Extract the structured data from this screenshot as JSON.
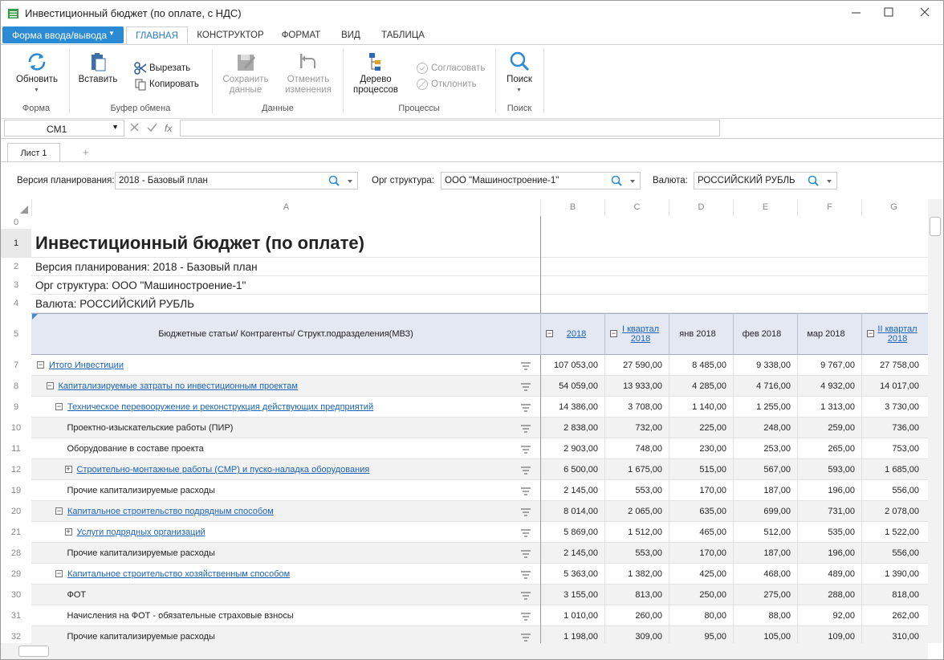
{
  "window": {
    "title": "Инвестиционный бюджет (по оплате, с НДС)"
  },
  "ribbon": {
    "form_button": "Форма ввода/вывода",
    "tabs": [
      "ГЛАВНАЯ",
      "КОНСТРУКТОР",
      "ФОРМАТ",
      "ВИД",
      "ТАБЛИЦА"
    ],
    "active_tab": 0,
    "groups": [
      {
        "label": "Форма",
        "buttons": [
          "Обновить"
        ]
      },
      {
        "label": "Буфер обмена",
        "buttons": [
          "Вставить",
          "Вырезать",
          "Копировать"
        ]
      },
      {
        "label": "Данные",
        "buttons": [
          "Сохранить данные",
          "Отменить изменения"
        ]
      },
      {
        "label": "Процессы",
        "buttons": [
          "Дерево процессов",
          "Согласовать",
          "Отклонить"
        ]
      },
      {
        "label": "Поиск",
        "buttons": [
          "Поиск"
        ]
      }
    ]
  },
  "formula_bar": {
    "cell_ref": "CM1"
  },
  "sheet_tabs": [
    "Лист 1"
  ],
  "filters": [
    {
      "label": "Версия планирования:",
      "value": "2018 - Базовый план"
    },
    {
      "label": "Орг структура:",
      "value": "ООО \"Машиностроение-1\""
    },
    {
      "label": "Валюта:",
      "value": "РОССИЙСКИЙ РУБЛЬ"
    }
  ],
  "sheet": {
    "columns": [
      "A",
      "B",
      "C",
      "D",
      "E",
      "F",
      "G"
    ],
    "title_rows": [
      {
        "num": 0,
        "text": null
      },
      {
        "num": 1,
        "text": "Инвестиционный бюджет (по оплате)"
      },
      {
        "num": 2,
        "text": "Версия планирования: 2018 - Базовый план"
      },
      {
        "num": 3,
        "text": "Орг структура: ООО \"Машиностроение-1\""
      },
      {
        "num": 4,
        "text": "Валюта: РОССИЙСКИЙ РУБЛЬ"
      }
    ],
    "header_row": {
      "num": 5,
      "label": "Бюджетные статьи/ Контрагенты/ Структ.подразделения(МВЗ)",
      "columns": [
        {
          "text": "2018",
          "toggle": "minus",
          "link": true
        },
        {
          "text": "I квартал 2018",
          "toggle": "minus",
          "link": true
        },
        {
          "text": "янв 2018",
          "toggle": null,
          "link": false
        },
        {
          "text": "фев 2018",
          "toggle": null,
          "link": false
        },
        {
          "text": "мар 2018",
          "toggle": null,
          "link": false
        },
        {
          "text": "II квартал 2018",
          "toggle": "minus",
          "link": true
        }
      ]
    },
    "rows": [
      {
        "num": 7,
        "label": "Итого Инвестиции",
        "level": 0,
        "toggle": "minus",
        "link": true,
        "values": [
          "107 053,00",
          "27 590,00",
          "8 485,00",
          "9 338,00",
          "9 767,00",
          "27 758,00"
        ]
      },
      {
        "num": 8,
        "label": "Капитализируемые затраты по инвестиционным проектам",
        "level": 1,
        "toggle": "minus",
        "link": true,
        "values": [
          "54 059,00",
          "13 933,00",
          "4 285,00",
          "4 716,00",
          "4 932,00",
          "14 017,00"
        ]
      },
      {
        "num": 9,
        "label": "Техническое перевооружение и реконструкция действующих предприятий",
        "level": 2,
        "toggle": "minus",
        "link": true,
        "values": [
          "14 386,00",
          "3 708,00",
          "1 140,00",
          "1 255,00",
          "1 313,00",
          "3 730,00"
        ]
      },
      {
        "num": 10,
        "label": "Проектно-изыскательские работы (ПИР)",
        "level": 3,
        "toggle": null,
        "link": false,
        "values": [
          "2 838,00",
          "732,00",
          "225,00",
          "248,00",
          "259,00",
          "736,00"
        ]
      },
      {
        "num": 11,
        "label": "Оборудование в составе проекта",
        "level": 3,
        "toggle": null,
        "link": false,
        "values": [
          "2 903,00",
          "748,00",
          "230,00",
          "253,00",
          "265,00",
          "753,00"
        ]
      },
      {
        "num": 12,
        "label": "Строительно-монтажные работы (СМР) и пуско-наладка оборудования",
        "level": 3,
        "toggle": "plus",
        "link": true,
        "values": [
          "6 500,00",
          "1 675,00",
          "515,00",
          "567,00",
          "593,00",
          "1 685,00"
        ]
      },
      {
        "num": 19,
        "label": "Прочие капитализируемые расходы",
        "level": 3,
        "toggle": null,
        "link": false,
        "values": [
          "2 145,00",
          "553,00",
          "170,00",
          "187,00",
          "196,00",
          "556,00"
        ]
      },
      {
        "num": 20,
        "label": "Капитальное строительство подрядным способом",
        "level": 2,
        "toggle": "minus",
        "link": true,
        "values": [
          "8 014,00",
          "2 065,00",
          "635,00",
          "699,00",
          "731,00",
          "2 078,00"
        ]
      },
      {
        "num": 21,
        "label": "Услуги подрядных организаций",
        "level": 3,
        "toggle": "plus",
        "link": true,
        "values": [
          "5 869,00",
          "1 512,00",
          "465,00",
          "512,00",
          "535,00",
          "1 522,00"
        ]
      },
      {
        "num": 28,
        "label": "Прочие капитализируемые расходы",
        "level": 3,
        "toggle": null,
        "link": false,
        "values": [
          "2 145,00",
          "553,00",
          "170,00",
          "187,00",
          "196,00",
          "556,00"
        ]
      },
      {
        "num": 29,
        "label": "Капитальное строительство хозяйственным способом",
        "level": 2,
        "toggle": "minus",
        "link": true,
        "values": [
          "5 363,00",
          "1 382,00",
          "425,00",
          "468,00",
          "489,00",
          "1 390,00"
        ]
      },
      {
        "num": 30,
        "label": "ФОТ",
        "level": 3,
        "toggle": null,
        "link": false,
        "values": [
          "3 155,00",
          "813,00",
          "250,00",
          "275,00",
          "288,00",
          "818,00"
        ]
      },
      {
        "num": 31,
        "label": "Начисления на ФОТ - обязательные страховые взносы",
        "level": 3,
        "toggle": null,
        "link": false,
        "values": [
          "1 010,00",
          "260,00",
          "80,00",
          "88,00",
          "92,00",
          "262,00"
        ]
      },
      {
        "num": 32,
        "label": "Прочие капитализируемые расходы",
        "level": 3,
        "toggle": null,
        "link": false,
        "values": [
          "1 198,00",
          "309,00",
          "95,00",
          "105,00",
          "109,00",
          "310,00"
        ]
      }
    ]
  }
}
